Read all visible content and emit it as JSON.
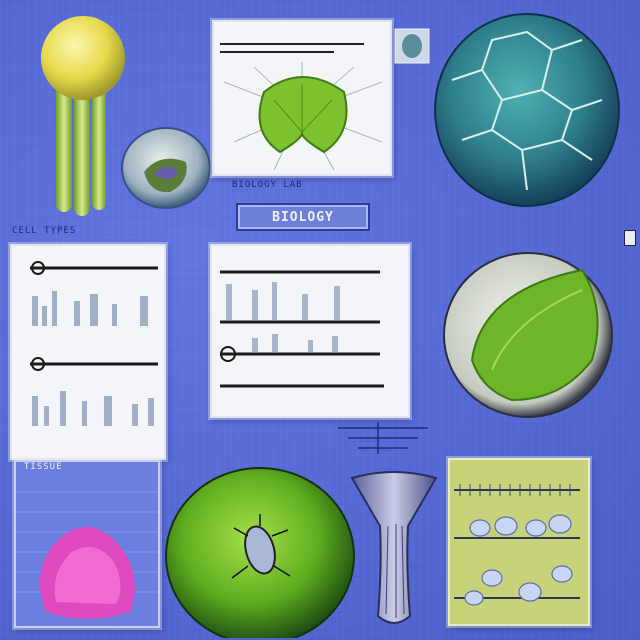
{
  "title_badge": "BIOLOGY",
  "captions": {
    "top_panel": "BIOLOGY LAB",
    "top_left_strip": "CELL TYPES",
    "bottom_left_panel": "TISSUE"
  },
  "colors": {
    "background": "#5b6fd8",
    "panel": "#f3f5f8",
    "leaf_green": "#7dc12e",
    "cell_teal": "#2f7f8c",
    "magenta_tissue": "#e04ac0"
  },
  "icons": [
    "mushroom-specimen-icon",
    "spore-bulb-icon",
    "leaf-section-icon",
    "cracked-cell-sphere-icon",
    "green-cell-disc-icon",
    "microbe-sphere-icon",
    "funnel-vessel-icon",
    "lab-shelf-icon"
  ]
}
